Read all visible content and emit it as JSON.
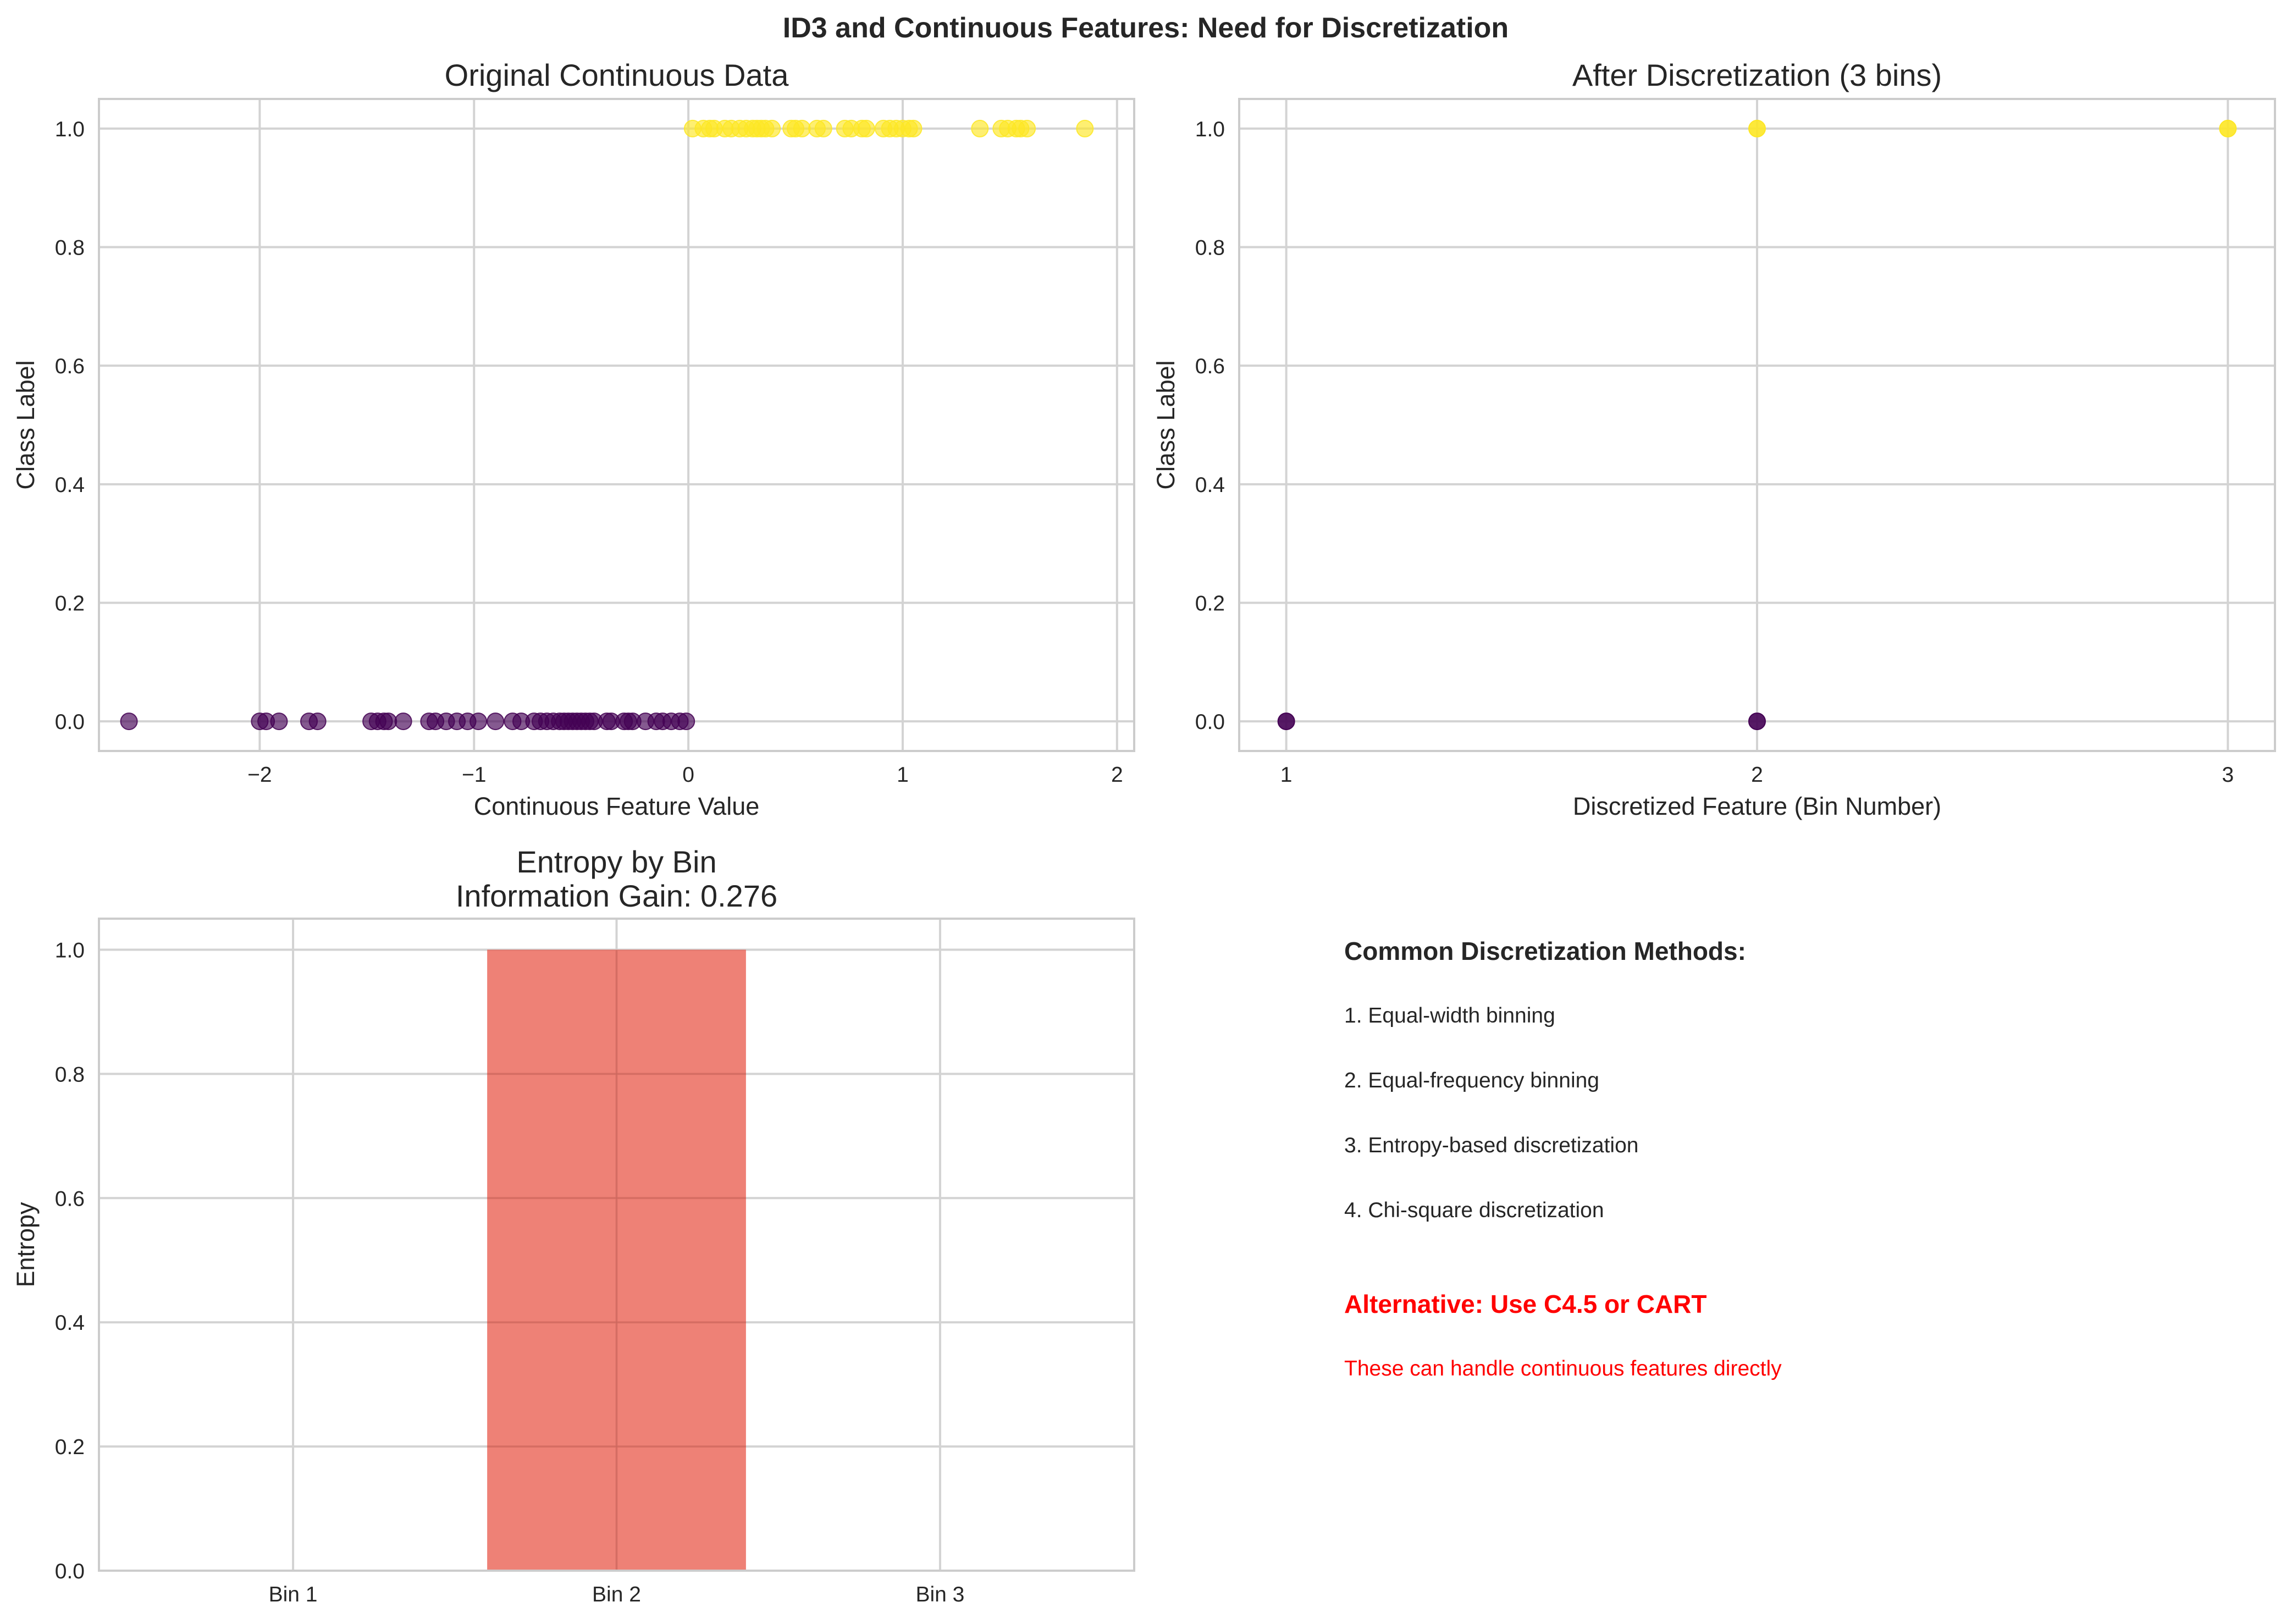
{
  "figure_title": "ID3 and Continuous Features: Need for Discretization",
  "chart_data": [
    {
      "type": "scatter",
      "title": "Original Continuous Data",
      "xlabel": "Continuous Feature Value",
      "ylabel": "Class Label",
      "xlim": [
        -2.75,
        2.08
      ],
      "ylim": [
        -0.05,
        1.05
      ],
      "xticks": [
        -2,
        -1,
        0,
        1,
        2
      ],
      "xtick_labels": [
        "−2",
        "−1",
        "0",
        "1",
        "2"
      ],
      "yticks": [
        0.0,
        0.2,
        0.4,
        0.6,
        0.8,
        1.0
      ],
      "ytick_labels": [
        "0.0",
        "0.2",
        "0.4",
        "0.6",
        "0.8",
        "1.0"
      ],
      "grid": true,
      "series": [
        {
          "color": "#440154",
          "y": 0,
          "x": [
            -2.61,
            -2.0,
            -1.97,
            -1.91,
            -1.77,
            -1.73,
            -1.48,
            -1.45,
            -1.42,
            -1.4,
            -1.33,
            -1.21,
            -1.18,
            -1.13,
            -1.08,
            -1.03,
            -0.98,
            -0.9,
            -0.82,
            -0.78,
            -0.72,
            -0.69,
            -0.66,
            -0.63,
            -0.6,
            -0.58,
            -0.56,
            -0.54,
            -0.52,
            -0.5,
            -0.48,
            -0.46,
            -0.44,
            -0.38,
            -0.36,
            -0.3,
            -0.28,
            -0.26,
            -0.2,
            -0.15,
            -0.12,
            -0.08,
            -0.04,
            -0.01
          ]
        },
        {
          "color": "#fde725",
          "y": 1,
          "x": [
            0.02,
            0.07,
            0.1,
            0.12,
            0.17,
            0.2,
            0.24,
            0.27,
            0.3,
            0.32,
            0.34,
            0.36,
            0.39,
            0.48,
            0.5,
            0.53,
            0.6,
            0.63,
            0.73,
            0.76,
            0.81,
            0.83,
            0.91,
            0.94,
            0.97,
            1.0,
            1.03,
            1.05,
            1.36,
            1.46,
            1.49,
            1.53,
            1.55,
            1.58,
            1.85
          ]
        }
      ]
    },
    {
      "type": "scatter",
      "title": "After Discretization (3 bins)",
      "xlabel": "Discretized Feature (Bin Number)",
      "ylabel": "Class Label",
      "xlim": [
        0.9,
        3.1
      ],
      "ylim": [
        -0.05,
        1.05
      ],
      "xticks": [
        1,
        2,
        3
      ],
      "xtick_labels": [
        "1",
        "2",
        "3"
      ],
      "yticks": [
        0.0,
        0.2,
        0.4,
        0.6,
        0.8,
        1.0
      ],
      "ytick_labels": [
        "0.0",
        "0.2",
        "0.4",
        "0.6",
        "0.8",
        "1.0"
      ],
      "grid": true,
      "points": [
        {
          "x": 1,
          "y": 0,
          "color": "#440154"
        },
        {
          "x": 2,
          "y": 0,
          "color": "#440154"
        },
        {
          "x": 2,
          "y": 1,
          "color": "#fde725"
        },
        {
          "x": 3,
          "y": 1,
          "color": "#fde725"
        }
      ]
    },
    {
      "type": "bar",
      "title": [
        "Entropy by Bin",
        "Information Gain: 0.276"
      ],
      "xlabel": "",
      "ylabel": "Entropy",
      "categories": [
        "Bin 1",
        "Bin 2",
        "Bin 3"
      ],
      "values": [
        0.0,
        1.0,
        0.0
      ],
      "color": "#e74c3c",
      "ylim": [
        0,
        1.05
      ],
      "yticks": [
        0.0,
        0.2,
        0.4,
        0.6,
        0.8,
        1.0
      ],
      "ytick_labels": [
        "0.0",
        "0.2",
        "0.4",
        "0.6",
        "0.8",
        "1.0"
      ],
      "grid": true
    }
  ],
  "text_panel": {
    "heading": "Common Discretization Methods:",
    "items": [
      "1. Equal-width binning",
      "2. Equal-frequency binning",
      "3. Entropy-based discretization",
      "4. Chi-square discretization"
    ],
    "alternative": "Alternative: Use C4.5 or CART",
    "note": "These can handle continuous features directly"
  }
}
